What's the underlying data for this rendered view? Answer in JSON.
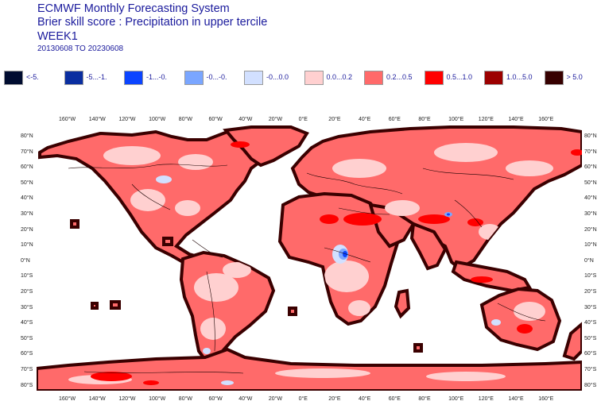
{
  "header": {
    "title_line1": "ECMWF Monthly Forecasting System",
    "title_line2": "Brier skill score : Precipitation in upper tercile",
    "title_line3": "WEEK1",
    "period": "20130608 TO 20230608"
  },
  "legend": [
    {
      "label": "<-5.",
      "color": "#000c30"
    },
    {
      "label": "-5...-1.",
      "color": "#0a2ea0"
    },
    {
      "label": "-1...-0.",
      "color": "#0b44ff"
    },
    {
      "label": "-0...-0.",
      "color": "#7aa6ff"
    },
    {
      "label": "-0...0.0",
      "color": "#d2e0ff"
    },
    {
      "label": "0.0...0.2",
      "color": "#ffd0d0"
    },
    {
      "label": "0.2...0.5",
      "color": "#ff6a6a"
    },
    {
      "label": "0.5...1.0",
      "color": "#ff0000"
    },
    {
      "label": "1.0...5.0",
      "color": "#9c0000"
    },
    {
      "label": "> 5.0",
      "color": "#360000"
    }
  ],
  "map": {
    "lon_labels": [
      "160°W",
      "140°W",
      "120°W",
      "100°W",
      "80°W",
      "60°W",
      "40°W",
      "20°W",
      "0°E",
      "20°E",
      "40°E",
      "60°E",
      "80°E",
      "100°E",
      "120°E",
      "140°E",
      "160°E"
    ],
    "lat_labels": [
      "80°N",
      "70°N",
      "60°N",
      "50°N",
      "40°N",
      "30°N",
      "20°N",
      "10°N",
      "0°N",
      "10°S",
      "20°S",
      "30°S",
      "40°S",
      "50°S",
      "60°S",
      "70°S",
      "80°S"
    ],
    "colors": {
      "land_base": "#ff6a6a",
      "land_light": "#ffd0d0",
      "land_strong": "#ff0000",
      "land_border": "#3a0000",
      "negative_light": "#d2e0ff",
      "negative_mid": "#7aa6ff",
      "negative_strong": "#0b44ff"
    }
  }
}
